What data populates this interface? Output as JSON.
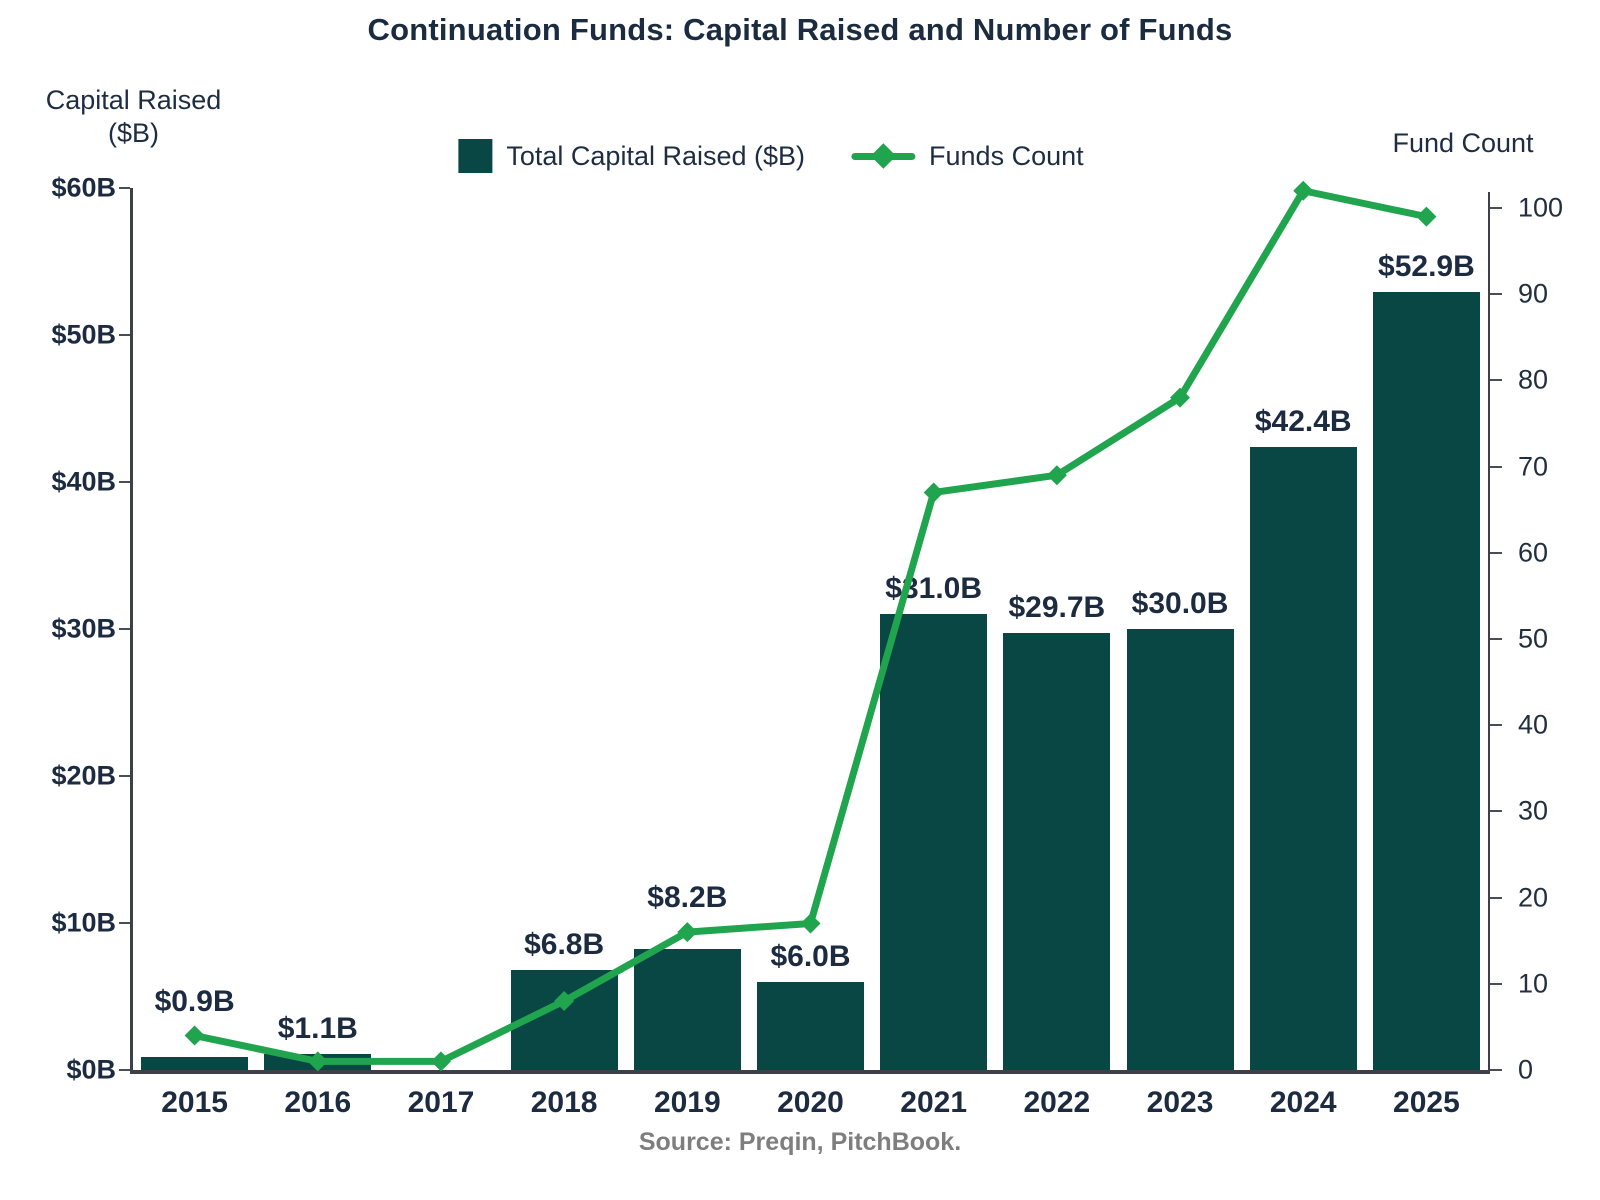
{
  "source": "Source: Preqin, PitchBook.",
  "colors": {
    "bar": "#084744",
    "line": "#21a44e",
    "text": "#1c2b40",
    "axis": "#3d4147",
    "source_text": "#7e7e7e"
  },
  "chart_data": {
    "type": "bar+line",
    "title": "Continuation Funds: Capital Raised and Number of Funds",
    "categories": [
      "2015",
      "2016",
      "2017",
      "2018",
      "2019",
      "2020",
      "2021",
      "2022",
      "2023",
      "2024",
      "2025"
    ],
    "series": [
      {
        "name": "Total Capital Raised ($B)",
        "type": "bar",
        "axis": "left",
        "values": [
          0.9,
          1.1,
          0,
          6.8,
          8.2,
          6.0,
          31.0,
          29.7,
          30.0,
          42.4,
          52.9
        ],
        "labels": [
          "$0.9B",
          "$1.1B",
          "",
          "$6.8B",
          "$8.2B",
          "$6.0B",
          "$31.0B",
          "$29.7B",
          "$30.0B",
          "$42.4B",
          "$52.9B"
        ]
      },
      {
        "name": "Funds Count",
        "type": "line",
        "axis": "right",
        "values": [
          4,
          1,
          1,
          8,
          16,
          17,
          67,
          69,
          78,
          102,
          99
        ]
      }
    ],
    "left_axis": {
      "title": "Capital Raised ($B)",
      "ticks": [
        "$0B",
        "$10B",
        "$20B",
        "$30B",
        "$40B",
        "$50B",
        "$60B"
      ],
      "range": [
        0,
        60
      ]
    },
    "right_axis": {
      "title": "Fund Count",
      "ticks": [
        "0",
        "10",
        "20",
        "30",
        "40",
        "50",
        "60",
        "70",
        "80",
        "90",
        "100"
      ],
      "range": [
        0,
        100
      ]
    },
    "legend": [
      "Total Capital Raised ($B)",
      "Funds Count"
    ],
    "legend_position": "top-center",
    "grid": false
  }
}
